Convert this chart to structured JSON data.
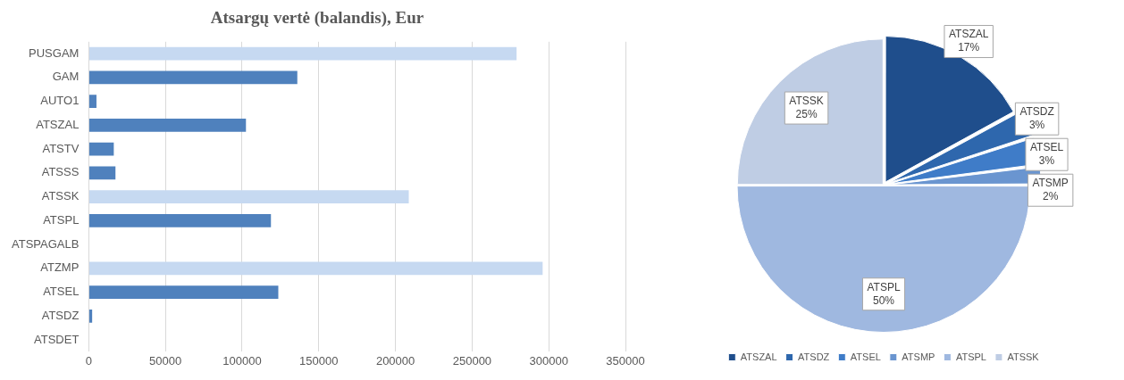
{
  "chart_data": [
    {
      "type": "bar",
      "orientation": "horizontal",
      "title": "Atsargų vertė (balandis), Eur",
      "categories": [
        "PUSGAM",
        "GAM",
        "AUTO1",
        "ATSZAL",
        "ATSTV",
        "ATSSS",
        "ATSSK",
        "ATSPL",
        "ATSPAGALB",
        "ATZMP",
        "ATSEL",
        "ATSDZ",
        "ATSDET"
      ],
      "values": [
        279000,
        136000,
        5000,
        102500,
        16300,
        17400,
        208700,
        118800,
        0,
        296000,
        123600,
        2200,
        0
      ],
      "colors": [
        "#c6d9f1",
        "#4f81bd",
        "#4f81bd",
        "#4f81bd",
        "#4f81bd",
        "#4f81bd",
        "#c6d9f1",
        "#4f81bd",
        "#4f81bd",
        "#c6d9f1",
        "#4f81bd",
        "#4f81bd",
        "#4f81bd"
      ],
      "xlim": [
        0,
        350000
      ],
      "xticks": [
        0,
        50000,
        100000,
        150000,
        200000,
        250000,
        300000,
        350000
      ],
      "grid": "x",
      "legend": false
    },
    {
      "type": "pie",
      "categories": [
        "ATSZAL",
        "ATSDZ",
        "ATSEL",
        "ATSMP",
        "ATSPL",
        "ATSSK"
      ],
      "values": [
        17,
        3,
        3,
        2,
        50,
        25
      ],
      "value_labels": [
        "17%",
        "3%",
        "3%",
        "2%",
        "50%",
        "25%"
      ],
      "colors": [
        "#1f4e8c",
        "#2e67ad",
        "#3f7cc8",
        "#6a95d0",
        "#9fb8e0",
        "#bfcde4"
      ],
      "legend": "bottom"
    }
  ]
}
